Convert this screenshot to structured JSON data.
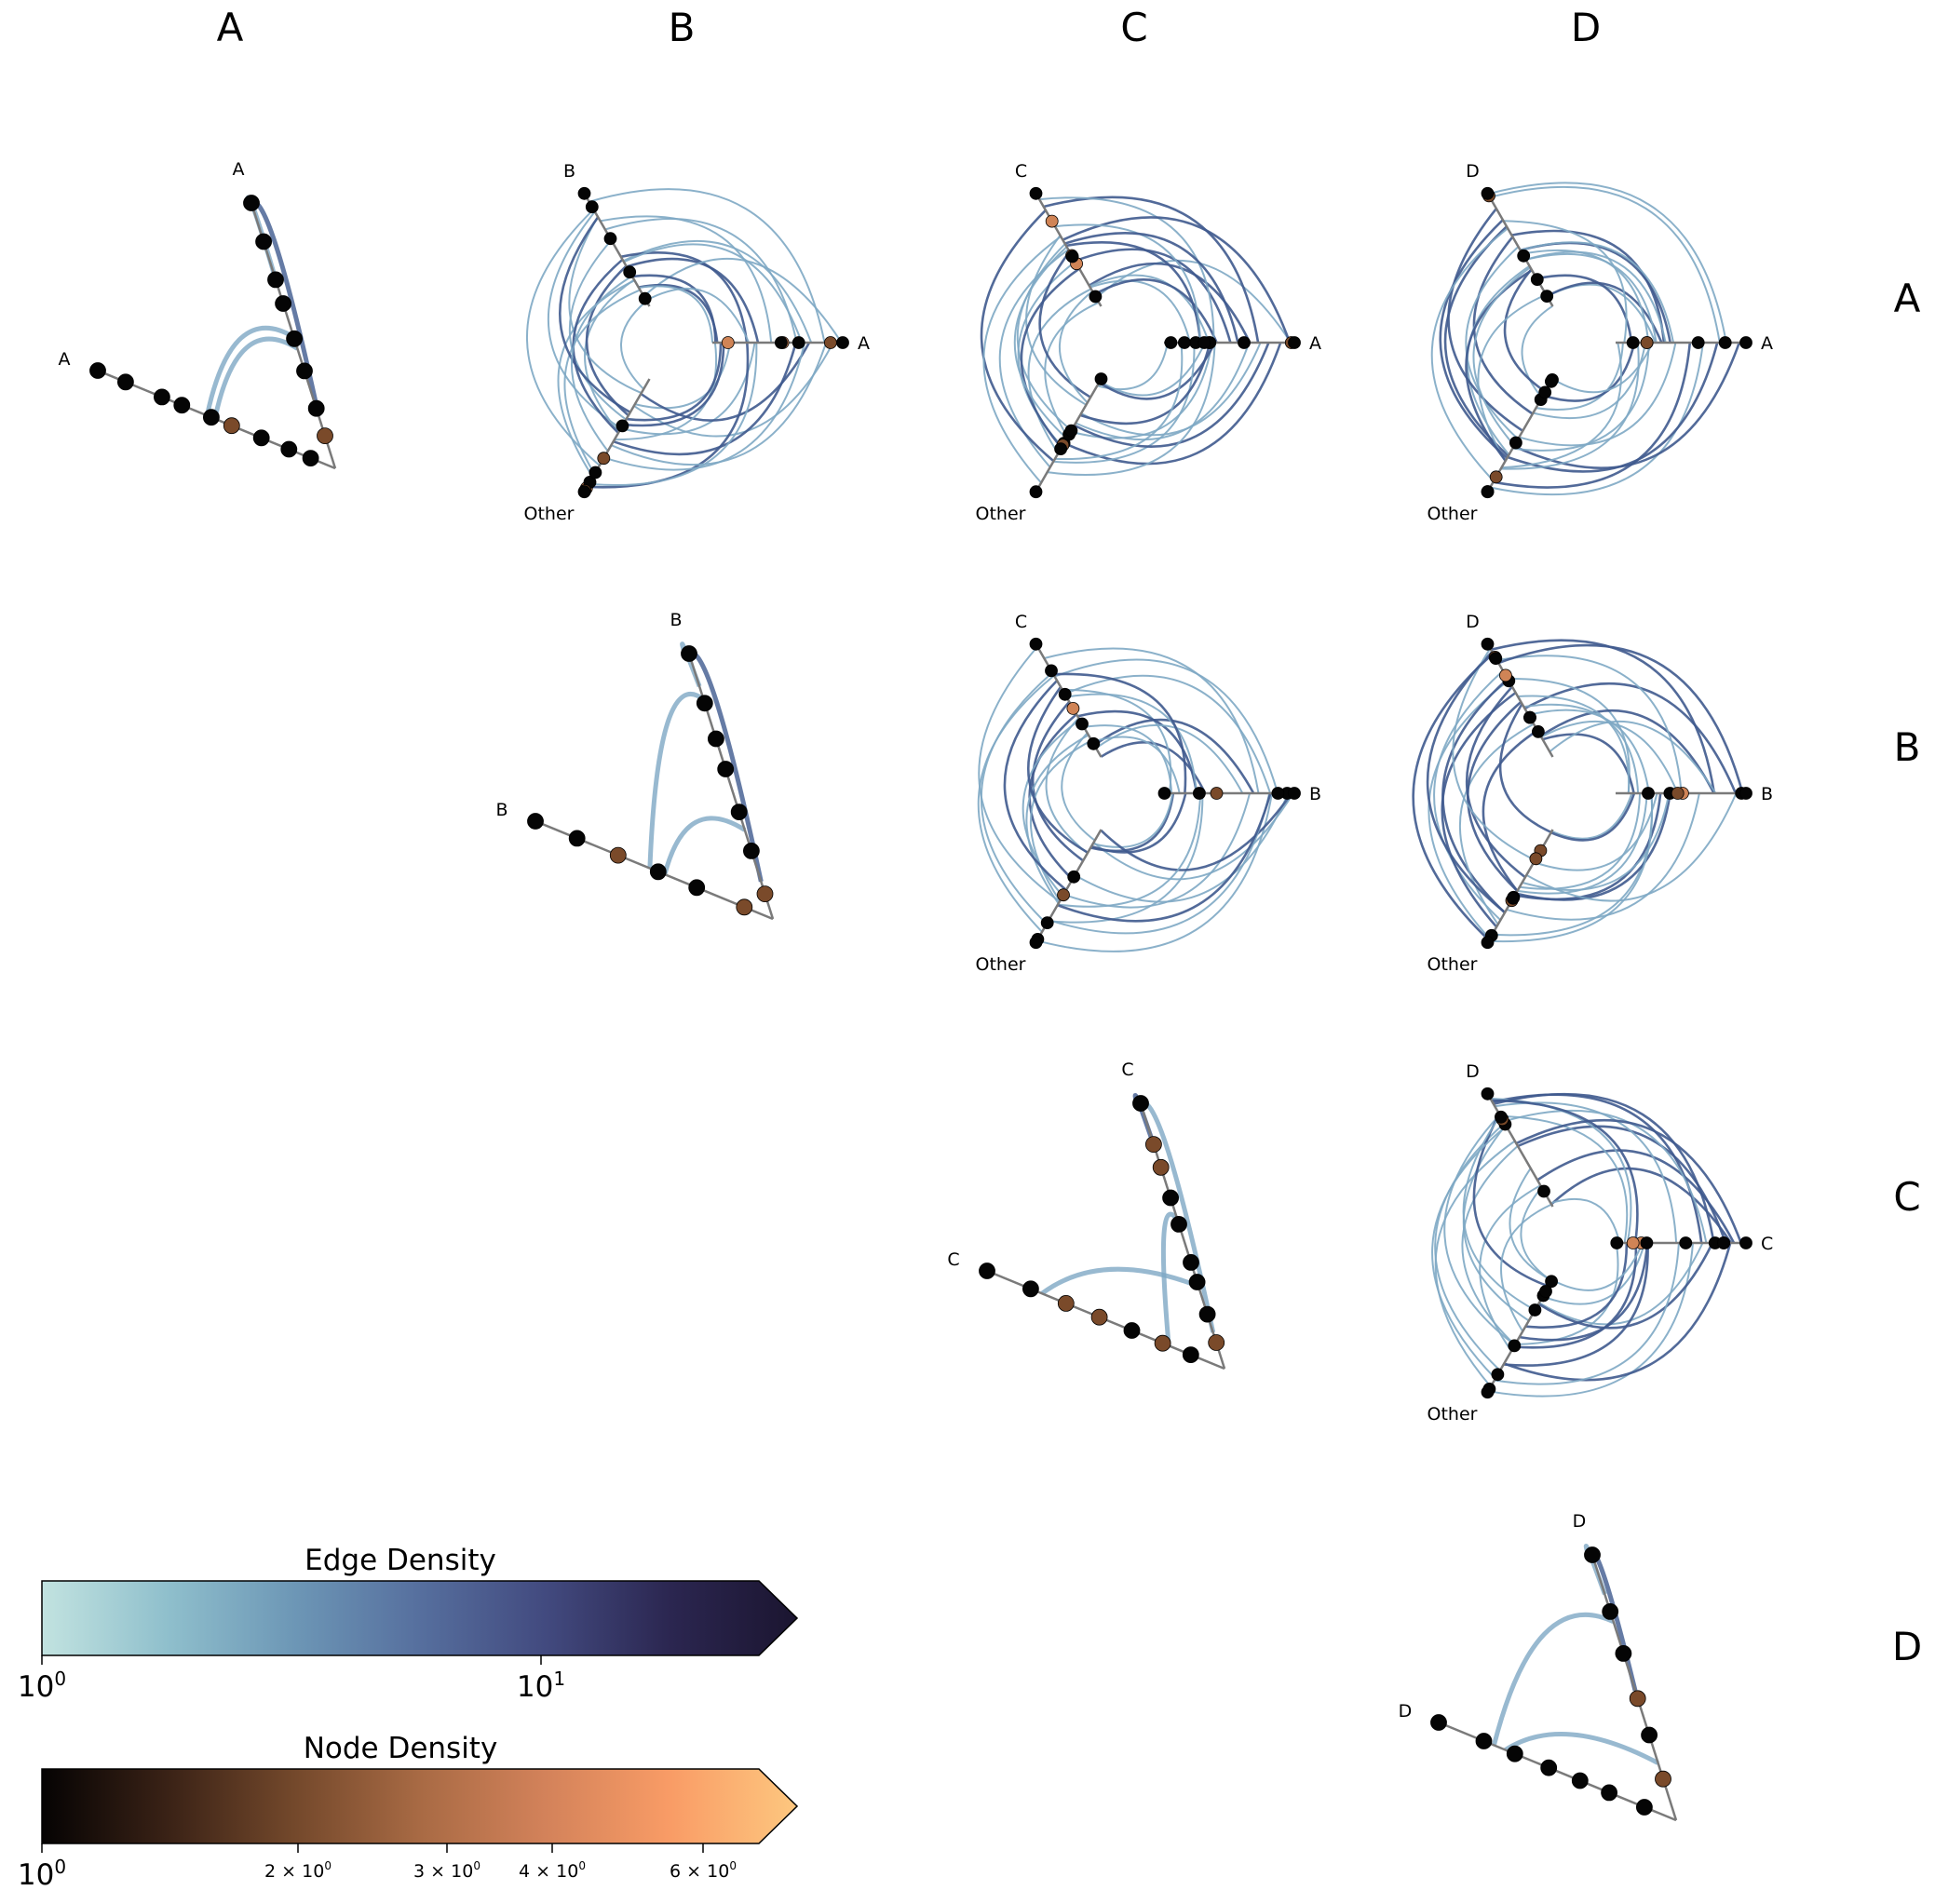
{
  "column_titles": [
    "A",
    "B",
    "C",
    "D"
  ],
  "row_titles": [
    "A",
    "B",
    "C",
    "D"
  ],
  "panels": [
    {
      "id": "AA",
      "row": 0,
      "col": 0,
      "kind": "triangle",
      "axis_labels": [
        "A",
        "A"
      ]
    },
    {
      "id": "AB",
      "row": 0,
      "col": 1,
      "kind": "hive",
      "axis_labels": [
        "B",
        "A",
        "Other"
      ]
    },
    {
      "id": "AC",
      "row": 0,
      "col": 2,
      "kind": "hive",
      "axis_labels": [
        "C",
        "A",
        "Other"
      ]
    },
    {
      "id": "AD",
      "row": 0,
      "col": 3,
      "kind": "hive",
      "axis_labels": [
        "D",
        "A",
        "Other"
      ]
    },
    {
      "id": "BB",
      "row": 1,
      "col": 1,
      "kind": "triangle",
      "axis_labels": [
        "B",
        "B"
      ]
    },
    {
      "id": "BC",
      "row": 1,
      "col": 2,
      "kind": "hive",
      "axis_labels": [
        "C",
        "B",
        "Other"
      ]
    },
    {
      "id": "BD",
      "row": 1,
      "col": 3,
      "kind": "hive",
      "axis_labels": [
        "D",
        "B",
        "Other"
      ]
    },
    {
      "id": "CC",
      "row": 2,
      "col": 2,
      "kind": "triangle",
      "axis_labels": [
        "C",
        "C"
      ]
    },
    {
      "id": "CD",
      "row": 2,
      "col": 3,
      "kind": "hive",
      "axis_labels": [
        "D",
        "C",
        "Other"
      ]
    },
    {
      "id": "DD",
      "row": 3,
      "col": 3,
      "kind": "triangle",
      "axis_labels": [
        "D",
        "D"
      ]
    }
  ],
  "colorbars": {
    "edge": {
      "title": "Edge Density",
      "scale": "log",
      "ticks": [
        "10^0",
        "10^1"
      ],
      "tick_labels": [
        {
          "base": "10",
          "exp": "0"
        },
        {
          "base": "10",
          "exp": "1"
        }
      ],
      "colors": [
        "#c2e3e0",
        "#8fbfcc",
        "#6d97b6",
        "#566f9e",
        "#424a7f",
        "#2b2650",
        "#1b1530"
      ]
    },
    "node": {
      "title": "Node Density",
      "scale": "log",
      "tick_labels": [
        {
          "base": "10",
          "exp": "0"
        },
        {
          "base": "2 × 10",
          "exp": "0"
        },
        {
          "base": "3 × 10",
          "exp": "0"
        },
        {
          "base": "4 × 10",
          "exp": "0"
        },
        {
          "base": "6 × 10",
          "exp": "0"
        }
      ],
      "colors": [
        "#050303",
        "#3a2216",
        "#73482b",
        "#a86a44",
        "#d3825a",
        "#f99c66",
        "#fdc77f"
      ]
    }
  },
  "colors": {
    "axis_line": "#7a7a7a",
    "node_dark": "#050505",
    "node_mid": "#7a4a2a",
    "node_light": "#d08456",
    "edge_light": "#7ea8c4",
    "edge_dark": "#3f5a8e"
  }
}
